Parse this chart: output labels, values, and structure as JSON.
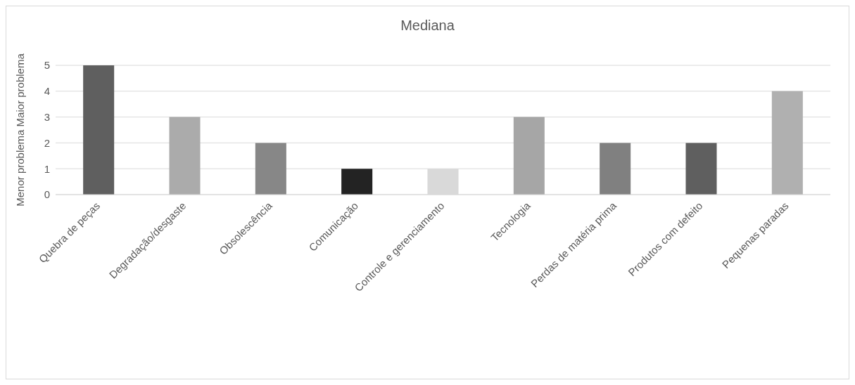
{
  "chart_data": {
    "type": "bar",
    "title": "Mediana",
    "ylabel": "Menor problema Maior problema",
    "categories": [
      "Quebra de peças",
      "Degradação/desgaste",
      "Obsolescência",
      "Comunicação",
      "Controle e gerenciamento",
      "Tecnologia",
      "Perdas de matéria prima",
      "Produtos com defeito",
      "Pequenas paradas"
    ],
    "values": [
      5,
      3,
      2,
      1,
      1,
      3,
      2,
      2,
      4
    ],
    "colors": [
      "#5f5f5f",
      "#ababab",
      "#878787",
      "#232323",
      "#d9d9d9",
      "#a6a6a6",
      "#808080",
      "#5f5f5f",
      "#b0b0b0"
    ],
    "ylim": [
      0,
      5
    ],
    "yticks": [
      0,
      1,
      2,
      3,
      4,
      5
    ],
    "grid": "y"
  }
}
